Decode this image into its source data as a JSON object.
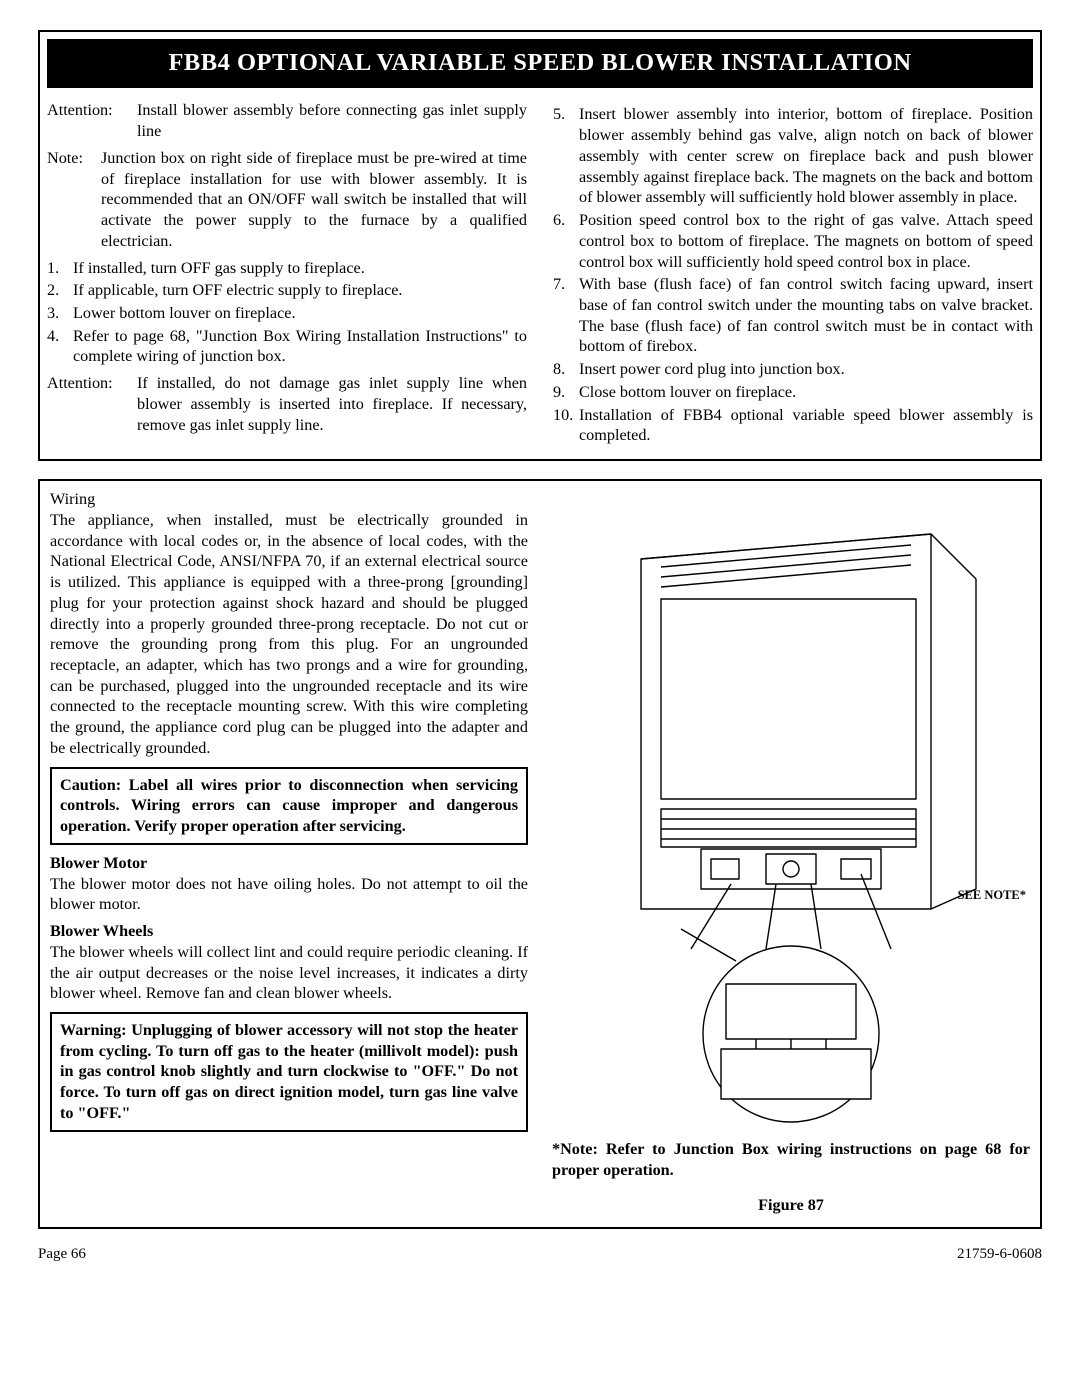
{
  "title_banner": "FBB4 OPTIONAL VARIABLE SPEED BLOWER INSTALLATION",
  "left": {
    "attention_label": "Attention:",
    "attention_text": "Install blower assembly before connecting gas inlet supply line",
    "note_label": "Note:",
    "note_text": "Junction box on right side of fireplace must be pre-wired at time of fireplace installation for use with blower assembly. It is recommended that an ON/OFF wall switch be installed that will activate the power supply to the furnace by a qualified electrician.",
    "steps": [
      "If installed, turn OFF gas supply to fireplace.",
      "If applicable, turn OFF electric supply to fireplace.",
      "Lower bottom louver on fireplace.",
      "Refer to page 68, \"Junction Box Wiring Installation Instructions\" to complete wiring of junction box."
    ],
    "attention2_label": "Attention:",
    "attention2_text": "If installed, do not damage gas inlet supply line when blower assembly is inserted into fireplace. If necessary, remove gas inlet supply line."
  },
  "right_steps": [
    "Insert blower assembly into interior, bottom of fireplace. Position blower assembly behind gas valve, align notch on back of blower assembly with center screw on fireplace back and push blower assembly against fireplace back. The magnets on the back and bottom of blower assembly will sufficiently hold blower assembly in place.",
    "Position speed control box to the right of gas valve. Attach speed control box to bottom of fireplace. The magnets on bottom of speed control box will sufficiently hold speed control box in place.",
    "With base (flush face) of fan control switch facing upward, insert base of fan control switch under the mounting tabs on valve bracket. The base (flush face) of fan control switch must be in contact with bottom of firebox.",
    "Insert power cord plug into junction box.",
    "Close bottom louver on fireplace.",
    "Installation of FBB4 optional variable speed blower assembly is completed."
  ],
  "right_start_num": 5,
  "wiring": {
    "heading": "Wiring",
    "body": "The appliance, when installed, must be electrically grounded in accordance with local codes or, in the absence of local codes, with the National Electrical Code, ANSI/NFPA 70, if an external electrical source is utilized. This appliance is equipped with a three-prong [grounding] plug for your protection against shock hazard and should be plugged directly into a properly grounded three-prong receptacle. Do not cut or remove the grounding prong from this plug. For an ungrounded receptacle, an adapter, which has two prongs and a wire for grounding, can be purchased, plugged into the ungrounded receptacle and its wire connected to the receptacle mounting screw. With this wire completing the ground, the appliance cord plug can be plugged into the adapter and be electrically grounded.",
    "caution_box": "Caution: Label all wires prior to disconnection when servicing controls. Wiring errors can cause improper and dangerous operation. Verify proper operation after servicing.",
    "motor_head": "Blower Motor",
    "motor_body": "The blower motor does not have oiling holes. Do not attempt to oil the blower motor.",
    "wheels_head": "Blower Wheels",
    "wheels_body": "The blower wheels will collect lint and could require periodic cleaning. If the air output decreases or the noise level increases, it indicates a dirty blower wheel. Remove fan and clean blower wheels.",
    "warning_box": "Warning: Unplugging of blower accessory will not stop the heater from cycling. To turn off gas to the heater (millivolt model): push in gas control knob slightly and turn clockwise to \"OFF.\" Do not force. To turn off gas on direct ignition model, turn gas line valve to \"OFF.\""
  },
  "figure": {
    "see_note": "SEE NOTE*",
    "note": "*Note:  Refer to Junction Box wiring instructions on page 68 for proper operation.",
    "label": "Figure 87"
  },
  "footer": {
    "page": "Page 66",
    "docno": "21759-6-0608"
  },
  "style": {
    "bg": "#ffffff",
    "fg": "#000000",
    "banner_bg": "#000000",
    "banner_fg": "#ffffff",
    "border": "#000000",
    "diagram_stroke": "#000000",
    "diagram_fill": "#ffffff"
  }
}
